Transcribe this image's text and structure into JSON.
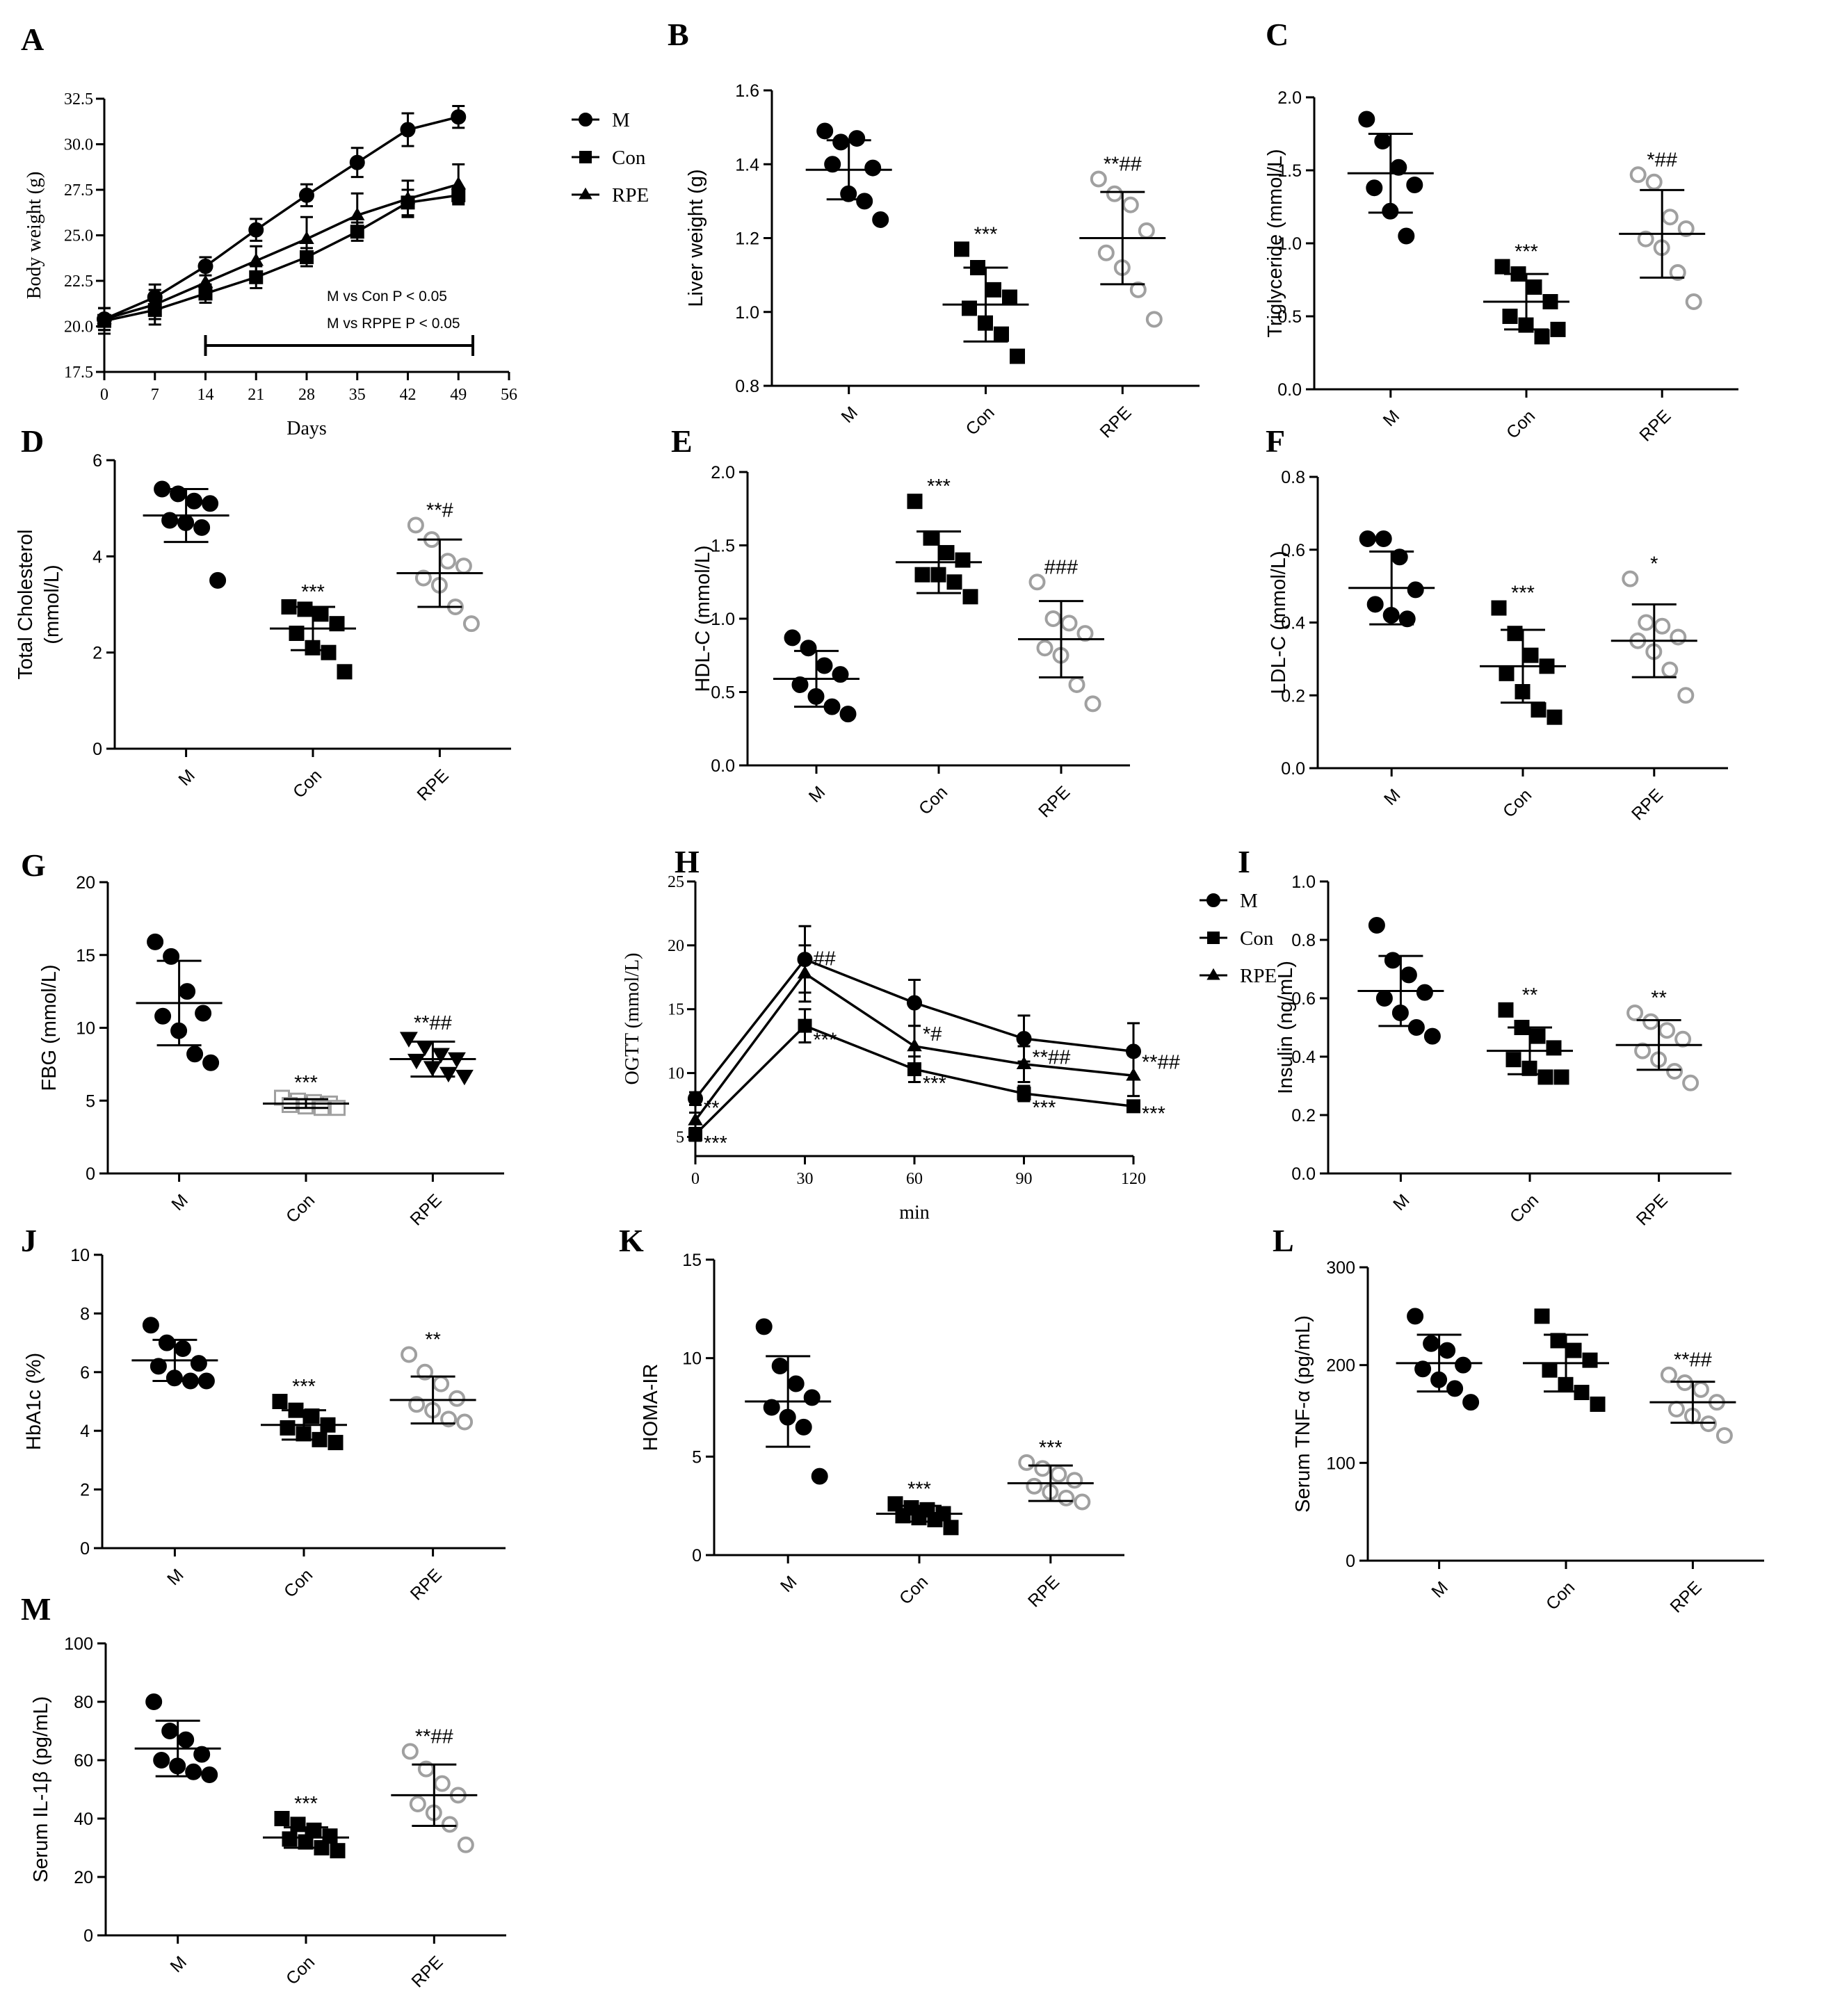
{
  "chart_data": [
    {
      "id": "A",
      "type": "line",
      "panel_label": "A",
      "xlabel": "Days",
      "ylabel": "Body weight (g)",
      "xlim": [
        0,
        56
      ],
      "ylim": [
        17.5,
        32.5
      ],
      "xticks": [
        0,
        7,
        14,
        21,
        28,
        35,
        42,
        49,
        56
      ],
      "yticks": [
        "17.5",
        "20.0",
        "22.5",
        "25.0",
        "27.5",
        "30.0",
        "32.5"
      ],
      "x": [
        0,
        7,
        14,
        21,
        28,
        35,
        42,
        49
      ],
      "series": [
        {
          "name": "M",
          "marker": "circle",
          "values": [
            20.4,
            21.6,
            23.3,
            25.3,
            27.2,
            29.0,
            30.8,
            31.5
          ],
          "err": [
            0.6,
            0.7,
            0.5,
            0.6,
            0.6,
            0.8,
            0.9,
            0.6
          ]
        },
        {
          "name": "Con",
          "marker": "square",
          "values": [
            20.3,
            20.9,
            21.8,
            22.7,
            23.8,
            25.2,
            26.8,
            27.2
          ],
          "err": [
            0.7,
            0.8,
            0.5,
            0.6,
            0.5,
            0.5,
            0.7,
            0.4
          ]
        },
        {
          "name": "RPE",
          "marker": "triangle",
          "values": [
            20.4,
            21.2,
            22.4,
            23.6,
            24.8,
            26.1,
            27.0,
            27.8
          ],
          "err": [
            0.6,
            0.8,
            0.7,
            0.8,
            1.2,
            1.2,
            1.0,
            1.1
          ]
        }
      ],
      "annotations": [
        "M vs Con    P < 0.05",
        "M vs RPPE  P < 0.05"
      ],
      "bar_range": [
        14,
        51
      ],
      "legend": "right"
    },
    {
      "id": "B",
      "type": "scatter",
      "panel_label": "B",
      "ylabel": "Liver weight (g)",
      "ylim": [
        0.8,
        1.6
      ],
      "yticks": [
        "0.8",
        "1.0",
        "1.2",
        "1.4",
        "1.6"
      ],
      "categories": [
        "M",
        "Con",
        "RPE"
      ],
      "groups": [
        {
          "points": [
            1.49,
            1.46,
            1.47,
            1.39,
            1.4,
            1.32,
            1.3,
            1.25
          ],
          "mean": 1.385,
          "sd": 0.08,
          "sig": ""
        },
        {
          "points": [
            1.17,
            1.12,
            1.06,
            1.04,
            1.01,
            0.97,
            0.94,
            0.88
          ],
          "mean": 1.02,
          "sd": 0.1,
          "sig": "***"
        },
        {
          "points": [
            1.36,
            1.32,
            1.29,
            1.22,
            1.16,
            1.12,
            1.06,
            0.98
          ],
          "mean": 1.2,
          "sd": 0.125,
          "sig": "**##"
        }
      ]
    },
    {
      "id": "C",
      "type": "scatter",
      "panel_label": "C",
      "ylabel": "Triglyceride (mmol/L)",
      "ylim": [
        0,
        2.0
      ],
      "yticks": [
        "0.0",
        "0.5",
        "1.0",
        "1.5",
        "2.0"
      ],
      "categories": [
        "M",
        "Con",
        "RPE"
      ],
      "groups": [
        {
          "points": [
            1.85,
            1.7,
            1.52,
            1.4,
            1.38,
            1.22,
            1.05
          ],
          "mean": 1.48,
          "sd": 0.27,
          "sig": ""
        },
        {
          "points": [
            0.84,
            0.79,
            0.7,
            0.6,
            0.5,
            0.44,
            0.36,
            0.41
          ],
          "mean": 0.6,
          "sd": 0.19,
          "sig": "***"
        },
        {
          "points": [
            1.47,
            1.42,
            1.18,
            1.1,
            1.03,
            0.97,
            0.8,
            0.6
          ],
          "mean": 1.065,
          "sd": 0.3,
          "sig": "*##"
        }
      ]
    },
    {
      "id": "D",
      "type": "scatter",
      "panel_label": "D",
      "ylabel": "Total Cholesterol (mmol/L)",
      "ylim": [
        0,
        6
      ],
      "yticks": [
        "0",
        "2",
        "4",
        "6"
      ],
      "categories": [
        "M",
        "Con",
        "RPE"
      ],
      "groups": [
        {
          "points": [
            5.4,
            5.3,
            5.15,
            5.1,
            4.75,
            4.7,
            4.6,
            3.5
          ],
          "mean": 4.85,
          "sd": 0.55,
          "sig": ""
        },
        {
          "points": [
            2.95,
            2.9,
            2.8,
            2.6,
            2.4,
            2.1,
            2.0,
            1.6
          ],
          "mean": 2.5,
          "sd": 0.45,
          "sig": "***"
        },
        {
          "points": [
            4.65,
            4.35,
            3.9,
            3.8,
            3.55,
            3.4,
            2.95,
            2.6
          ],
          "mean": 3.65,
          "sd": 0.7,
          "sig": "**#"
        }
      ]
    },
    {
      "id": "E",
      "type": "scatter",
      "panel_label": "E",
      "ylabel": "HDL-C (mmol/L)",
      "ylim": [
        0,
        2.0
      ],
      "yticks": [
        "0.0",
        "0.5",
        "1.0",
        "1.5",
        "2.0"
      ],
      "categories": [
        "M",
        "Con",
        "RPE"
      ],
      "groups": [
        {
          "points": [
            0.87,
            0.8,
            0.68,
            0.62,
            0.55,
            0.47,
            0.4,
            0.35
          ],
          "mean": 0.59,
          "sd": 0.19,
          "sig": ""
        },
        {
          "points": [
            1.8,
            1.55,
            1.45,
            1.4,
            1.3,
            1.3,
            1.25,
            1.15
          ],
          "mean": 1.385,
          "sd": 0.21,
          "sig": "***"
        },
        {
          "points": [
            1.25,
            1.0,
            0.97,
            0.9,
            0.8,
            0.75,
            0.55,
            0.42
          ],
          "mean": 0.86,
          "sd": 0.26,
          "sig": "###"
        }
      ]
    },
    {
      "id": "F",
      "type": "scatter",
      "panel_label": "F",
      "ylabel": "LDL-C (mmol/L)",
      "ylim": [
        0,
        0.8
      ],
      "yticks": [
        "0.0",
        "0.2",
        "0.4",
        "0.6",
        "0.8"
      ],
      "categories": [
        "M",
        "Con",
        "RPE"
      ],
      "groups": [
        {
          "points": [
            0.63,
            0.63,
            0.58,
            0.49,
            0.45,
            0.42,
            0.41
          ],
          "mean": 0.495,
          "sd": 0.1,
          "sig": ""
        },
        {
          "points": [
            0.44,
            0.37,
            0.31,
            0.28,
            0.26,
            0.21,
            0.16,
            0.14
          ],
          "mean": 0.28,
          "sd": 0.1,
          "sig": "***"
        },
        {
          "points": [
            0.52,
            0.4,
            0.39,
            0.36,
            0.35,
            0.32,
            0.27,
            0.2
          ],
          "mean": 0.35,
          "sd": 0.1,
          "sig": "*"
        }
      ]
    },
    {
      "id": "G",
      "type": "scatter",
      "panel_label": "G",
      "ylabel": "FBG (mmol/L)",
      "ylim": [
        0,
        20
      ],
      "yticks": [
        "0",
        "5",
        "10",
        "15",
        "20"
      ],
      "categories": [
        "M",
        "Con",
        "RPE"
      ],
      "groups": [
        {
          "points": [
            15.9,
            14.9,
            12.5,
            11.0,
            10.8,
            9.8,
            8.2,
            7.6
          ],
          "mean": 11.7,
          "sd": 2.9,
          "sig": ""
        },
        {
          "points": [
            5.2,
            5.0,
            4.9,
            4.8,
            4.7,
            4.6,
            4.5,
            4.5
          ],
          "mean": 4.8,
          "sd": 0.3,
          "sig": "***"
        },
        {
          "points": [
            9.3,
            8.7,
            8.2,
            7.9,
            7.8,
            7.3,
            6.9,
            6.7
          ],
          "mean": 7.85,
          "sd": 1.2,
          "sig": "**##"
        }
      ]
    },
    {
      "id": "H",
      "type": "line",
      "panel_label": "H",
      "xlabel": "min",
      "ylabel": "OGTT (mmol/L)",
      "xlim": [
        0,
        120
      ],
      "ylim": [
        3.5,
        25
      ],
      "xticks": [
        0,
        30,
        60,
        90,
        120
      ],
      "yticks": [
        "5",
        "10",
        "15",
        "20",
        "25"
      ],
      "x": [
        0,
        30,
        60,
        90,
        120
      ],
      "series": [
        {
          "name": "M",
          "marker": "circle",
          "values": [
            8.0,
            18.9,
            15.5,
            12.7,
            11.7
          ],
          "err": [
            0.5,
            2.6,
            1.8,
            1.8,
            2.2
          ]
        },
        {
          "name": "Con",
          "marker": "square",
          "values": [
            5.2,
            13.7,
            10.3,
            8.4,
            7.4
          ],
          "err": [
            0.5,
            1.3,
            1.0,
            0.6,
            0.4
          ]
        },
        {
          "name": "RPE",
          "marker": "triangle",
          "values": [
            6.3,
            17.8,
            12.1,
            10.7,
            9.8
          ],
          "err": [
            0.6,
            2.2,
            1.6,
            1.4,
            1.6
          ]
        }
      ],
      "annotations": [
        {
          "x": 0,
          "text": "**"
        },
        {
          "x": 0,
          "text": "***"
        },
        {
          "x": 30,
          "text": "##"
        },
        {
          "x": 30,
          "text": "***"
        },
        {
          "x": 60,
          "text": "*#"
        },
        {
          "x": 60,
          "text": "***"
        },
        {
          "x": 90,
          "text": "**##"
        },
        {
          "x": 90,
          "text": "***"
        },
        {
          "x": 120,
          "text": "**##"
        },
        {
          "x": 120,
          "text": "***"
        }
      ],
      "legend": "right"
    },
    {
      "id": "I",
      "type": "scatter",
      "panel_label": "I",
      "ylabel": "Insulin (ng/mL)",
      "ylim": [
        0,
        1.0
      ],
      "yticks": [
        "0.0",
        "0.2",
        "0.4",
        "0.6",
        "0.8",
        "1.0"
      ],
      "categories": [
        "M",
        "Con",
        "RPE"
      ],
      "groups": [
        {
          "points": [
            0.85,
            0.73,
            0.68,
            0.62,
            0.6,
            0.55,
            0.5,
            0.47
          ],
          "mean": 0.625,
          "sd": 0.12,
          "sig": ""
        },
        {
          "points": [
            0.56,
            0.5,
            0.47,
            0.43,
            0.39,
            0.36,
            0.33,
            0.33
          ],
          "mean": 0.42,
          "sd": 0.08,
          "sig": "**"
        },
        {
          "points": [
            0.55,
            0.52,
            0.49,
            0.46,
            0.42,
            0.39,
            0.35,
            0.31
          ],
          "mean": 0.44,
          "sd": 0.085,
          "sig": "**"
        }
      ]
    },
    {
      "id": "J",
      "type": "scatter",
      "panel_label": "J",
      "ylabel": "HbA1c (%)",
      "ylim": [
        0,
        10
      ],
      "yticks": [
        "0",
        "2",
        "4",
        "6",
        "8",
        "10"
      ],
      "categories": [
        "M",
        "Con",
        "RPE"
      ],
      "groups": [
        {
          "points": [
            7.6,
            7.0,
            6.8,
            6.3,
            6.2,
            5.8,
            5.7,
            5.7
          ],
          "mean": 6.4,
          "sd": 0.7,
          "sig": ""
        },
        {
          "points": [
            5.0,
            4.7,
            4.5,
            4.2,
            4.1,
            3.9,
            3.7,
            3.6
          ],
          "mean": 4.2,
          "sd": 0.5,
          "sig": "***"
        },
        {
          "points": [
            6.6,
            6.0,
            5.6,
            5.1,
            4.9,
            4.7,
            4.4,
            4.3
          ],
          "mean": 5.05,
          "sd": 0.8,
          "sig": "**"
        }
      ]
    },
    {
      "id": "K",
      "type": "scatter",
      "panel_label": "K",
      "ylabel": "HOMA-IR",
      "ylim": [
        0,
        15
      ],
      "yticks": [
        "0",
        "5",
        "10",
        "15"
      ],
      "categories": [
        "M",
        "Con",
        "RPE"
      ],
      "groups": [
        {
          "points": [
            11.6,
            9.6,
            8.7,
            8.0,
            7.5,
            7.0,
            6.5,
            4.0
          ],
          "mean": 7.8,
          "sd": 2.3,
          "sig": ""
        },
        {
          "points": [
            2.6,
            2.4,
            2.3,
            2.1,
            2.0,
            1.9,
            1.8,
            1.4
          ],
          "mean": 2.1,
          "sd": 0.4,
          "sig": "***"
        },
        {
          "points": [
            4.7,
            4.4,
            4.1,
            3.8,
            3.5,
            3.2,
            2.9,
            2.7
          ],
          "mean": 3.65,
          "sd": 0.9,
          "sig": "***"
        }
      ]
    },
    {
      "id": "L",
      "type": "scatter",
      "panel_label": "L",
      "ylabel": "Serum TNF-α (pg/mL)",
      "ylim": [
        0,
        300
      ],
      "yticks": [
        "0",
        "100",
        "200",
        "300"
      ],
      "categories": [
        "M",
        "Con",
        "RPE"
      ],
      "groups": [
        {
          "points": [
            250,
            222,
            215,
            200,
            196,
            185,
            176,
            162
          ],
          "mean": 202,
          "sd": 29,
          "sig": ""
        },
        {
          "points": [
            250,
            225,
            215,
            205,
            195,
            180,
            172,
            160
          ],
          "mean": 202,
          "sd": 29,
          "sig": ""
        },
        {
          "points": [
            190,
            182,
            175,
            162,
            155,
            148,
            140,
            128
          ],
          "mean": 162,
          "sd": 21,
          "sig": "**##"
        }
      ]
    },
    {
      "id": "M",
      "type": "scatter",
      "panel_label": "M",
      "ylabel": "Serum IL-1β (pg/mL)",
      "ylim": [
        0,
        100
      ],
      "yticks": [
        "0",
        "20",
        "40",
        "60",
        "80",
        "100"
      ],
      "categories": [
        "M",
        "Con",
        "RPE"
      ],
      "groups": [
        {
          "points": [
            80,
            70,
            67,
            62,
            60,
            58,
            56,
            55
          ],
          "mean": 64,
          "sd": 9.5,
          "sig": ""
        },
        {
          "points": [
            40,
            38,
            36,
            34,
            33,
            32,
            30,
            29
          ],
          "mean": 33.5,
          "sd": 3.5,
          "sig": "***"
        },
        {
          "points": [
            63,
            57,
            52,
            48,
            45,
            42,
            38,
            31
          ],
          "mean": 48,
          "sd": 10.5,
          "sig": "**##"
        }
      ]
    }
  ]
}
